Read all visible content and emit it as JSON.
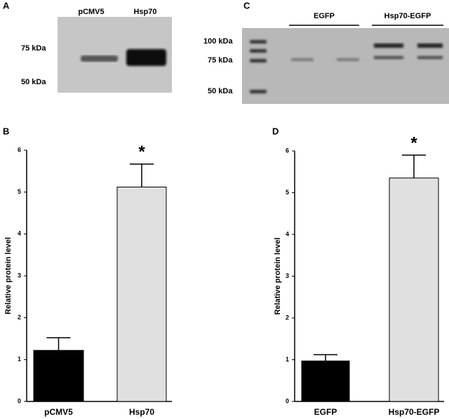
{
  "blots": {
    "A": {
      "panel_label": "A",
      "lanes": [
        "pCMV5",
        "Hsp70"
      ],
      "markers": [
        "75 kDa",
        "50 kDa"
      ]
    },
    "C": {
      "panel_label": "C",
      "groups": [
        "EGFP",
        "Hsp70-EGFP"
      ],
      "markers": [
        "100 kDa",
        "75 kDa",
        "50 kDa"
      ]
    }
  },
  "chart_data": [
    {
      "type": "bar",
      "panel_label": "B",
      "y_label": "Relative protein level",
      "categories": [
        "pCMV5",
        "Hsp70"
      ],
      "values": [
        1.22,
        5.12
      ],
      "errors": [
        0.3,
        0.55
      ],
      "colors": [
        "#000000",
        "#e0e0e0"
      ],
      "annotation": "*",
      "ylim": [
        0,
        6
      ],
      "yticks": [
        0,
        1,
        2,
        3,
        4,
        5,
        6
      ]
    },
    {
      "type": "bar",
      "panel_label": "D",
      "y_label": "Relative protein level",
      "categories": [
        "EGFP",
        "Hsp70-EGFP"
      ],
      "values": [
        0.97,
        5.35
      ],
      "errors": [
        0.15,
        0.55
      ],
      "colors": [
        "#000000",
        "#e0e0e0"
      ],
      "annotation": "*",
      "ylim": [
        0,
        6
      ],
      "yticks": [
        0,
        1,
        2,
        3,
        4,
        5,
        6
      ]
    }
  ]
}
